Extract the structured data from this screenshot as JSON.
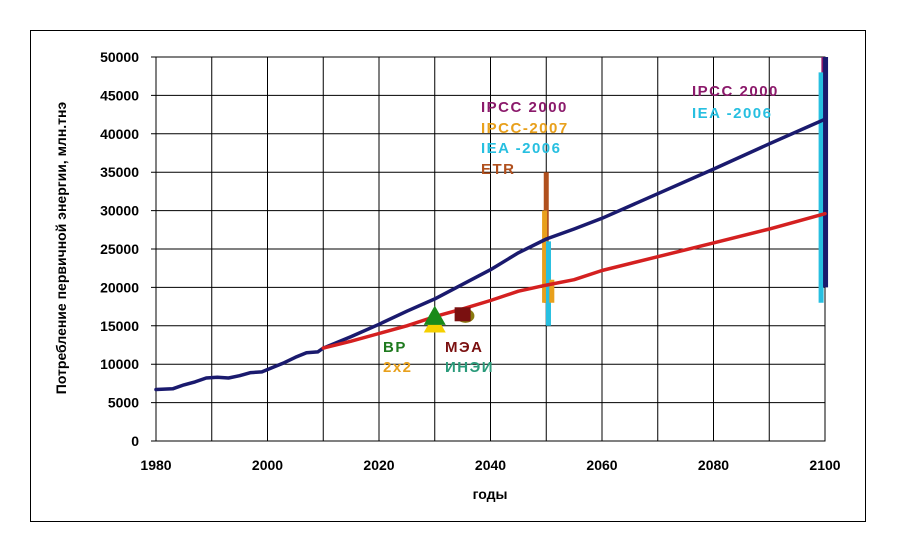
{
  "chart_data": {
    "type": "line",
    "title": "",
    "xlabel": "годы",
    "ylabel": "Потребление первичной энергии, млн.тнэ",
    "xlim": [
      1980,
      2100
    ],
    "ylim": [
      0,
      50000
    ],
    "x_ticks": [
      "1980",
      "2000",
      "2020",
      "2040",
      "2060",
      "2080",
      "2100"
    ],
    "y_ticks": [
      "0",
      "5000",
      "10000",
      "15000",
      "20000",
      "25000",
      "30000",
      "35000",
      "40000",
      "45000",
      "50000"
    ],
    "grid": true,
    "colors": {
      "navy": "#1a1a6e",
      "red": "#d42020",
      "purple": "#8b1a6b",
      "orange": "#e8a01c",
      "cyan": "#27bfe0",
      "brown": "#b0501e",
      "green": "#1a8a1a",
      "dark_green": "#1f7a1f",
      "gold": "#e8a01c",
      "maroon": "#7a1010",
      "teal": "#2a9a7a"
    },
    "series": [
      {
        "color": "#1a1a6e",
        "x": [
          1980,
          1983,
          1985,
          1987,
          1989,
          1991,
          1993,
          1995,
          1997,
          1999,
          2001,
          2003,
          2005,
          2007,
          2009,
          2010,
          2015,
          2020,
          2025,
          2030,
          2035,
          2040,
          2045,
          2050,
          2055,
          2060,
          2070,
          2080,
          2090,
          2100
        ],
        "values": [
          6700,
          6800,
          7300,
          7700,
          8200,
          8300,
          8200,
          8500,
          8900,
          9000,
          9600,
          10200,
          10900,
          11500,
          11600,
          12100,
          13600,
          15200,
          16900,
          18500,
          20400,
          22300,
          24500,
          26300,
          27600,
          29000,
          32200,
          35400,
          38700,
          41900
        ]
      },
      {
        "color": "#d42020",
        "x": [
          2010,
          2015,
          2020,
          2025,
          2030,
          2035,
          2040,
          2045,
          2050,
          2055,
          2060,
          2070,
          2080,
          2090,
          2100
        ],
        "values": [
          12100,
          13000,
          14000,
          15000,
          16200,
          17200,
          18300,
          19500,
          20300,
          21000,
          22200,
          24000,
          25800,
          27600,
          29600
        ]
      }
    ],
    "ranges": [
      {
        "x": 2050,
        "low": 18000,
        "high": 35000,
        "color": "#b0501e"
      },
      {
        "x": 2049.7,
        "low": 18000,
        "high": 30000,
        "color": "#e8a01c"
      },
      {
        "x": 2050.4,
        "low": 15000,
        "high": 26000,
        "color": "#27bfe0"
      },
      {
        "x": 2051,
        "low": 18000,
        "high": 21000,
        "color": "#e8a01c"
      },
      {
        "x": 2099.8,
        "low": 20000,
        "high": 50000,
        "color": "#8b1a6b"
      },
      {
        "x": 2099.3,
        "low": 18000,
        "high": 48000,
        "color": "#27bfe0"
      },
      {
        "x": 2100.1,
        "low": 20000,
        "high": 50000,
        "color": "#1a1a6e"
      }
    ],
    "markers": [
      {
        "shape": "triangle",
        "x": 2030,
        "y": 15200,
        "color": "#f5d000"
      },
      {
        "shape": "triangle",
        "x": 2030,
        "y": 16200,
        "color": "#1a8a1a"
      },
      {
        "shape": "ellipse",
        "x": 2035.5,
        "y": 16300,
        "color": "#8a7a10"
      },
      {
        "shape": "square",
        "x": 2035,
        "y": 16500,
        "color": "#7a1010"
      }
    ],
    "annotations": [
      {
        "text": "IPCC 2000",
        "color": "#8b1a6b"
      },
      {
        "text": "IPCC-2007",
        "color": "#e8a01c"
      },
      {
        "text": "IEA -2006",
        "color": "#27bfe0"
      },
      {
        "text": "ETR",
        "color": "#b0501e"
      },
      {
        "text": "IPCC 2000",
        "color": "#8b1a6b"
      },
      {
        "text": "IEA -2006",
        "color": "#27bfe0"
      },
      {
        "text": "BP",
        "color": "#1f7a1f"
      },
      {
        "text": "2x2",
        "color": "#e8a01c"
      },
      {
        "text": "МЭА",
        "color": "#7a1010"
      },
      {
        "text": "ИНЭИ",
        "color": "#2a9a7a"
      }
    ]
  }
}
